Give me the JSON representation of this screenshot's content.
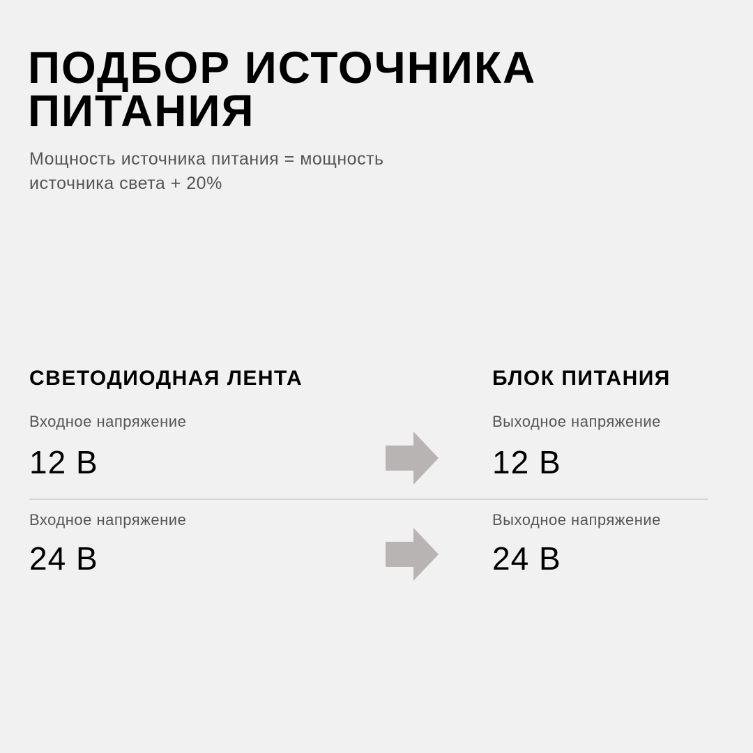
{
  "title": {
    "line1": "ПОДБОР ИСТОЧНИКА",
    "line2": "ПИТАНИЯ"
  },
  "subtitle": {
    "line1": "Мощность источника питания = мощность",
    "line2": "источника света + 20%"
  },
  "left": {
    "heading": "СВЕТОДИОДНАЯ ЛЕНТА"
  },
  "right": {
    "heading": "БЛОК ПИТАНИЯ"
  },
  "rows": [
    {
      "input_label": "Входное напряжение",
      "input_value": "12 В",
      "output_label": "Выходное напряжение",
      "output_value": "12 В"
    },
    {
      "input_label": "Входное напряжение",
      "input_value": "24 В",
      "output_label": "Выходное напряжение",
      "output_value": "24 В"
    }
  ],
  "icons": {
    "arrow": "arrow-right-icon"
  },
  "colors": {
    "background": "#f1f1f1",
    "arrow": "#b8b4b4",
    "divider": "#d4d4d4"
  }
}
